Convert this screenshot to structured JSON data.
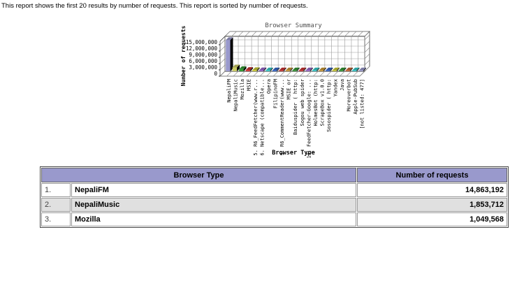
{
  "description": "This report shows the first 20 results by number of requests. This report is sorted by number of requests.",
  "chart_data": {
    "type": "bar",
    "style": "3d",
    "title": "Browser Summary",
    "xlabel": "Browser Type",
    "ylabel": "Number of requests",
    "ylim": [
      0,
      15000000
    ],
    "yticks": [
      0,
      3000000,
      6000000,
      9000000,
      12000000,
      15000000
    ],
    "ytick_labels": [
      "0",
      "3,000,000",
      "6,000,000",
      "9,000,000",
      "12,000,000",
      "15,000,000"
    ],
    "grid": true,
    "legend": false,
    "categories": [
      "NepaliFM",
      "NepaliMusic",
      "Mozilla",
      "MSIE",
      "5. R6_FeedFetcher(www.r...",
      "6. Netscape (compatible...",
      "Opera",
      "FilipinoFM",
      "9. R6_CommentReader(www...",
      "MSIE or",
      "Baiduspider ( http:",
      "Sogou web spider",
      "13. FeedFetcher-Google: ...",
      "HolmesBot (http:",
      "ScrapeBox v1.0.0",
      "Sosospider ( http:",
      "Yandex",
      "Java",
      "Moreoverbot",
      "Apple-PubSub",
      "[not listed: 477]"
    ],
    "values": [
      14863192,
      1853712,
      1049568,
      620000,
      540000,
      470000,
      410000,
      360000,
      320000,
      280000,
      250000,
      220000,
      200000,
      180000,
      160000,
      140000,
      120000,
      100000,
      90000,
      80000,
      150000
    ],
    "bar_colors": [
      "#9999CC",
      "#CCCC66",
      "#339933",
      "#CC3333",
      "#CCCC33",
      "#9966CC",
      "#33CCCC",
      "#3366CC",
      "#CC3333",
      "#CC9933",
      "#339933",
      "#CC3333",
      "#9966CC",
      "#33CCCC",
      "#CC9933",
      "#3366CC",
      "#CCCC33",
      "#339933",
      "#CC6633",
      "#33CCCC",
      "#9999CC"
    ],
    "title_color": "#505050",
    "axis_text_color": "#000000"
  },
  "table": {
    "headers": [
      "Browser Type",
      "Number of requests"
    ],
    "header_bg": "#9999CC",
    "alt_row_bg": "#E0E0E0",
    "rows": [
      {
        "rank": "1.",
        "browser": "NepaliFM",
        "requests": "14,863,192"
      },
      {
        "rank": "2.",
        "browser": "NepaliMusic",
        "requests": "1,853,712"
      },
      {
        "rank": "3.",
        "browser": "Mozilla",
        "requests": "1,049,568"
      }
    ]
  }
}
